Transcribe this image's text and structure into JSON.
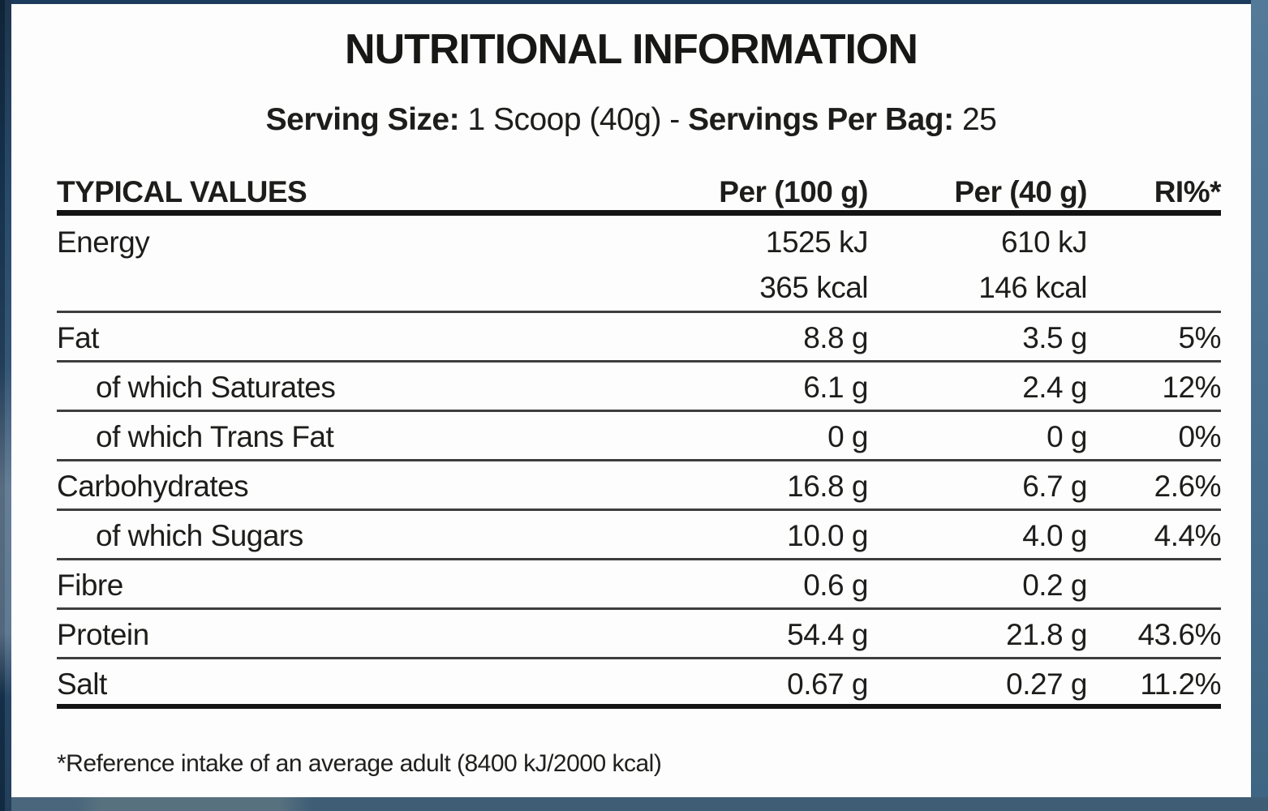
{
  "label": {
    "title": "NUTRITIONAL INFORMATION",
    "serving": {
      "size_label": "Serving Size:",
      "size_value": "1 Scoop (40g)",
      "dash": "-",
      "per_bag_label": "Servings Per Bag:",
      "per_bag_value": "25"
    },
    "table": {
      "headers": [
        "TYPICAL VALUES",
        "Per (100 g)",
        "Per (40 g)",
        "RI%*"
      ],
      "rows": [
        {
          "name": "Energy",
          "per100": "1525 kJ",
          "per40": "610 kJ",
          "ri": ""
        },
        {
          "name": "",
          "per100": "365 kcal",
          "per40": "146 kcal",
          "ri": ""
        },
        {
          "name": "Fat",
          "per100": "8.8 g",
          "per40": "3.5 g",
          "ri": "5%"
        },
        {
          "name": "of which Saturates",
          "per100": "6.1 g",
          "per40": "2.4 g",
          "ri": "12%"
        },
        {
          "name": "of which Trans Fat",
          "per100": "0 g",
          "per40": "0 g",
          "ri": "0%"
        },
        {
          "name": "Carbohydrates",
          "per100": "16.8 g",
          "per40": "6.7 g",
          "ri": "2.6%"
        },
        {
          "name": "of which Sugars",
          "per100": "10.0 g",
          "per40": "4.0 g",
          "ri": "4.4%"
        },
        {
          "name": "Fibre",
          "per100": "0.6 g",
          "per40": "0.2 g",
          "ri": ""
        },
        {
          "name": "Protein",
          "per100": "54.4 g",
          "per40": "21.8 g",
          "ri": "43.6%"
        },
        {
          "name": "Salt",
          "per100": "0.67 g",
          "per40": "0.27 g",
          "ri": "11.2%"
        }
      ],
      "footnote": "*Reference intake of an average adult (8400 kJ/2000 kcal)"
    },
    "colors": {
      "text": "#1d1d1b",
      "card_background": "#fdfdfd",
      "frame_navy_left": "#1d3c5c",
      "frame_blue_right": "#49708f",
      "frame_blue_bottom": "#3f5d75",
      "top_strip_pink": "#f3d6d0",
      "rule_thick": "#141414",
      "rule_thin": "#3e3e3e"
    }
  }
}
